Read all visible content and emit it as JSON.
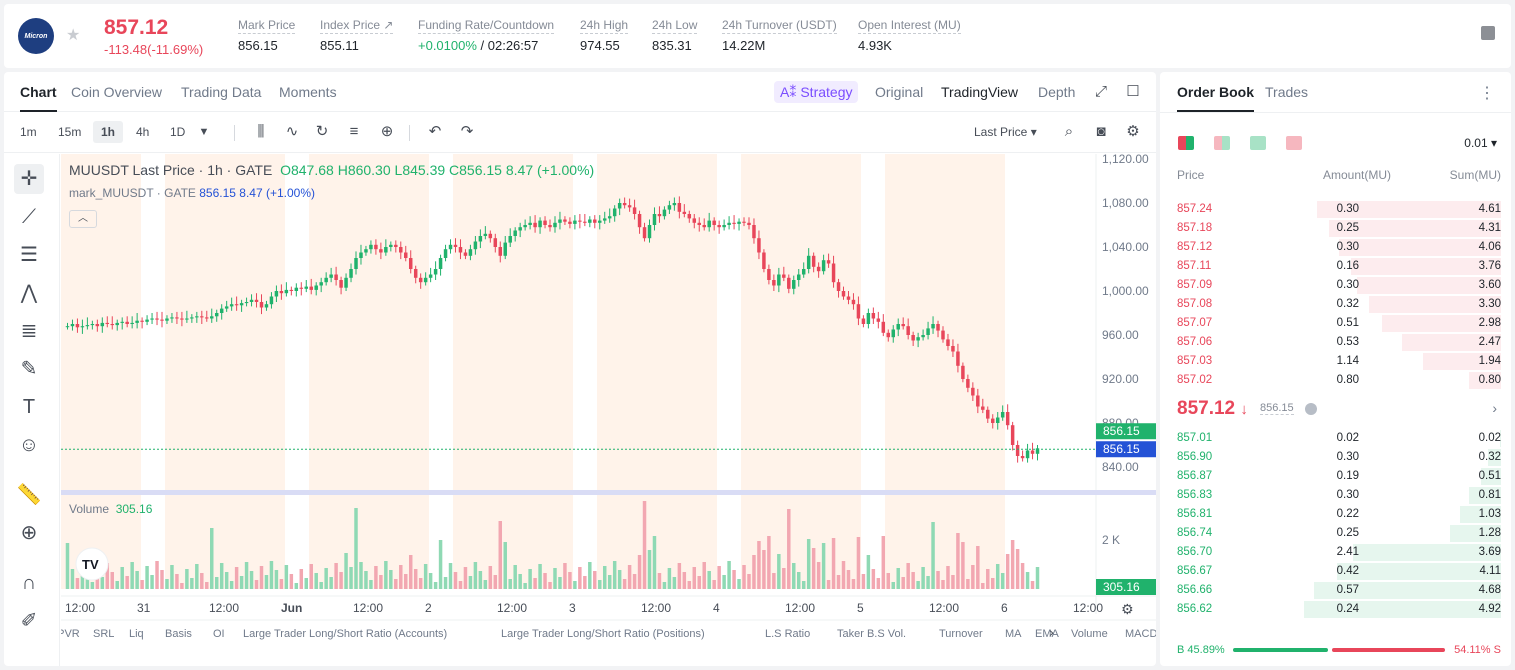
{
  "header": {
    "symbol_logo": "Micron",
    "price": "857.12",
    "change": "-113.48(-11.69%)",
    "stats": [
      {
        "label": "Mark Price",
        "value": "856.15"
      },
      {
        "label": "Index Price ↗",
        "value": "855.11"
      },
      {
        "label": "Funding Rate/Countdown",
        "value": "+0.0100%",
        "value2": " / 02:26:57"
      },
      {
        "label": "24h High",
        "value": "974.55"
      },
      {
        "label": "24h Low",
        "value": "835.31"
      },
      {
        "label": "24h Turnover (USDT)",
        "value": "14.22M"
      },
      {
        "label": "Open Interest (MU)",
        "value": "4.93K"
      }
    ]
  },
  "chart_tabs": [
    "Chart",
    "Coin Overview",
    "Trading Data",
    "Moments"
  ],
  "view_tabs": {
    "strategy": "Strategy",
    "original": "Original",
    "tradingview": "TradingView",
    "depth": "Depth"
  },
  "timeframes": [
    "1m",
    "15m",
    "1h",
    "4h",
    "1D"
  ],
  "price_type": "Last Price ▾",
  "legend": {
    "title": "MUUSDT Last Price · 1h · GATE",
    "o": "O847.68",
    "h": "H860.30",
    "l": "L845.39",
    "c": "C856.15",
    "chg": "8.47 (+1.00%)",
    "mark_label": "mark_MUUSDT · GATE",
    "mark_val": "856.15 8.47 (+1.00%)",
    "vol_label": "Volume",
    "vol_val": "305.16"
  },
  "price_axis": [
    "1,120.00",
    "1,080.00",
    "1,040.00",
    "1,000.00",
    "960.00",
    "920.00",
    "880.00",
    "840.00"
  ],
  "price_tags": {
    "last": "856.15",
    "mark": "856.15",
    "vol": "305.16",
    "vol_axis": "2 K"
  },
  "time_axis": [
    "12:00",
    "31",
    "12:00",
    "Jun",
    "12:00",
    "2",
    "12:00",
    "3",
    "12:00",
    "4",
    "12:00",
    "5",
    "12:00",
    "6",
    "12:00"
  ],
  "indicators": [
    "LPVR",
    "SRL",
    "Liq",
    "Basis",
    "OI",
    "Large Trader Long/Short Ratio (Accounts)",
    "Large Trader Long/Short Ratio (Positions)",
    "L.S Ratio",
    "Taker B.S Vol.",
    "Turnover",
    "MA",
    "EMA",
    "Volume",
    "MACD"
  ],
  "chart_data": {
    "type": "candlestick",
    "ylim": [
      820,
      1120
    ],
    "closes": [
      968,
      970,
      967,
      968,
      969,
      970,
      968,
      971,
      970,
      969,
      971,
      972,
      970,
      971,
      973,
      972,
      974,
      975,
      974,
      973,
      975,
      976,
      975,
      974,
      975,
      976,
      977,
      976,
      975,
      977,
      980,
      984,
      986,
      988,
      987,
      989,
      990,
      992,
      990,
      985,
      988,
      995,
      1000,
      998,
      1001,
      1000,
      1003,
      1002,
      1004,
      1001,
      1005,
      1008,
      1012,
      1015,
      1010,
      1003,
      1012,
      1020,
      1030,
      1035,
      1038,
      1042,
      1038,
      1035,
      1040,
      1042,
      1040,
      1035,
      1030,
      1020,
      1012,
      1008,
      1012,
      1015,
      1020,
      1030,
      1038,
      1042,
      1040,
      1035,
      1032,
      1038,
      1045,
      1050,
      1052,
      1048,
      1040,
      1032,
      1044,
      1050,
      1055,
      1058,
      1060,
      1062,
      1058,
      1064,
      1060,
      1058,
      1062,
      1065,
      1063,
      1061,
      1064,
      1063,
      1062,
      1065,
      1062,
      1064,
      1066,
      1068,
      1075,
      1080,
      1078,
      1076,
      1070,
      1058,
      1048,
      1060,
      1070,
      1068,
      1074,
      1078,
      1080,
      1072,
      1070,
      1066,
      1062,
      1060,
      1058,
      1064,
      1060,
      1058,
      1060,
      1062,
      1061,
      1063,
      1062,
      1060,
      1048,
      1035,
      1020,
      1010,
      1005,
      1015,
      1012,
      1002,
      1010,
      1015,
      1020,
      1032,
      1022,
      1018,
      1028,
      1025,
      1008,
      1000,
      995,
      992,
      988,
      975,
      970,
      980,
      975,
      972,
      962,
      958,
      965,
      970,
      968,
      960,
      955,
      958,
      960,
      966,
      970,
      964,
      956,
      950,
      945,
      932,
      920,
      912,
      905,
      895,
      892,
      884,
      880,
      885,
      890,
      878,
      860,
      850,
      848,
      855,
      852,
      857
    ]
  },
  "orderbook": {
    "tabs": [
      "Order Book",
      "Trades"
    ],
    "tick": "0.01 ▾",
    "heads": [
      "Price",
      "Amount(MU)",
      "Sum(MU)"
    ],
    "asks": [
      [
        "857.24",
        "0.30",
        "4.61"
      ],
      [
        "857.18",
        "0.25",
        "4.31"
      ],
      [
        "857.12",
        "0.30",
        "4.06"
      ],
      [
        "857.11",
        "0.16",
        "3.76"
      ],
      [
        "857.09",
        "0.30",
        "3.60"
      ],
      [
        "857.08",
        "0.32",
        "3.30"
      ],
      [
        "857.07",
        "0.51",
        "2.98"
      ],
      [
        "857.06",
        "0.53",
        "2.47"
      ],
      [
        "857.03",
        "1.14",
        "1.94"
      ],
      [
        "857.02",
        "0.80",
        "0.80"
      ]
    ],
    "mid": "857.12",
    "mid_arrow": "↓",
    "mid_mark": "856.15",
    "bids": [
      [
        "857.01",
        "0.02",
        "0.02"
      ],
      [
        "856.90",
        "0.30",
        "0.32"
      ],
      [
        "856.87",
        "0.19",
        "0.51"
      ],
      [
        "856.83",
        "0.30",
        "0.81"
      ],
      [
        "856.81",
        "0.22",
        "1.03"
      ],
      [
        "856.74",
        "0.25",
        "1.28"
      ],
      [
        "856.70",
        "2.41",
        "3.69"
      ],
      [
        "856.67",
        "0.42",
        "4.11"
      ],
      [
        "856.66",
        "0.57",
        "4.68"
      ],
      [
        "856.62",
        "0.24",
        "4.92"
      ]
    ],
    "buy_ratio": "45.89%",
    "sell_ratio": "54.11%",
    "buy_label": "B",
    "sell_label": "S"
  },
  "colors": {
    "up": "#20b26c",
    "down": "#e8465a",
    "accent": "#7a4dff"
  }
}
